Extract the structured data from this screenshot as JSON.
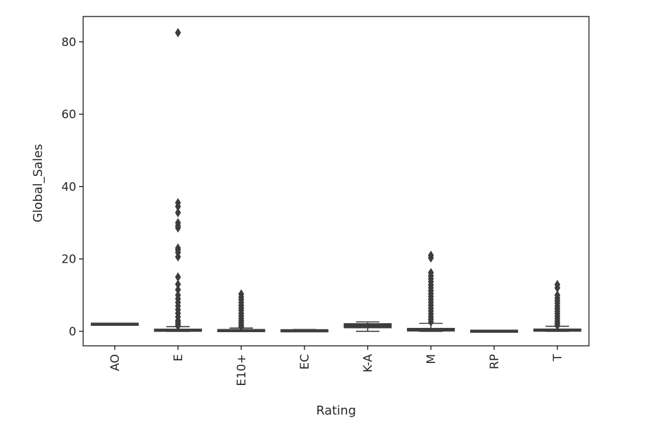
{
  "chart_data": {
    "type": "box",
    "title": "",
    "xlabel": "Rating",
    "ylabel": "Global_Sales",
    "ylim": [
      -4,
      87
    ],
    "yticks": [
      0,
      20,
      40,
      60,
      80
    ],
    "grid": false,
    "box_color": "#3d3d3d",
    "categories": [
      "AO",
      "E",
      "E10+",
      "EC",
      "K-A",
      "M",
      "RP",
      "T"
    ],
    "boxes": [
      {
        "category": "AO",
        "q1": 1.96,
        "median": 1.96,
        "q3": 1.96,
        "whisker_low": 1.96,
        "whisker_high": 1.96,
        "outliers": []
      },
      {
        "category": "E",
        "q1": 0.06,
        "median": 0.17,
        "q3": 0.55,
        "whisker_low": 0.01,
        "whisker_high": 1.28,
        "outliers": [
          82.53,
          35.52,
          34.5,
          32.8,
          30.0,
          29.2,
          28.6,
          23.0,
          22.5,
          21.8,
          20.6,
          15.0,
          13.0,
          11.5,
          10.0,
          9.0,
          8.0,
          7.0,
          6.0,
          5.0,
          4.0,
          3.0,
          2.5,
          2.0,
          1.5
        ]
      },
      {
        "category": "E10+",
        "q1": 0.05,
        "median": 0.14,
        "q3": 0.38,
        "whisker_low": 0.01,
        "whisker_high": 0.9,
        "outliers": [
          10.3,
          9.5,
          8.8,
          8.0,
          7.2,
          6.5,
          5.8,
          5.0,
          4.3,
          3.6,
          3.0,
          2.4,
          1.8,
          1.3
        ]
      },
      {
        "category": "EC",
        "q1": 0.04,
        "median": 0.1,
        "q3": 0.28,
        "whisker_low": 0.02,
        "whisker_high": 0.5,
        "outliers": []
      },
      {
        "category": "K-A",
        "q1": 1.0,
        "median": 1.6,
        "q3": 2.1,
        "whisker_low": 0.0,
        "whisker_high": 2.6,
        "outliers": []
      },
      {
        "category": "M",
        "q1": 0.1,
        "median": 0.27,
        "q3": 0.8,
        "whisker_low": 0.01,
        "whisker_high": 2.2,
        "outliers": [
          21.0,
          20.3,
          16.2,
          15.3,
          14.5,
          13.7,
          12.8,
          12.0,
          11.2,
          10.4,
          9.6,
          8.8,
          8.0,
          7.2,
          6.4,
          5.6,
          4.8,
          4.0,
          3.3,
          2.6
        ]
      },
      {
        "category": "RP",
        "q1": 0.0,
        "median": 0.03,
        "q3": 0.06,
        "whisker_low": 0.0,
        "whisker_high": 0.08,
        "outliers": []
      },
      {
        "category": "T",
        "q1": 0.07,
        "median": 0.19,
        "q3": 0.6,
        "whisker_low": 0.01,
        "whisker_high": 1.4,
        "outliers": [
          12.9,
          12.0,
          10.0,
          9.2,
          8.5,
          7.8,
          7.0,
          6.3,
          5.6,
          4.9,
          4.2,
          3.5,
          2.8,
          2.2,
          1.6
        ]
      }
    ]
  }
}
